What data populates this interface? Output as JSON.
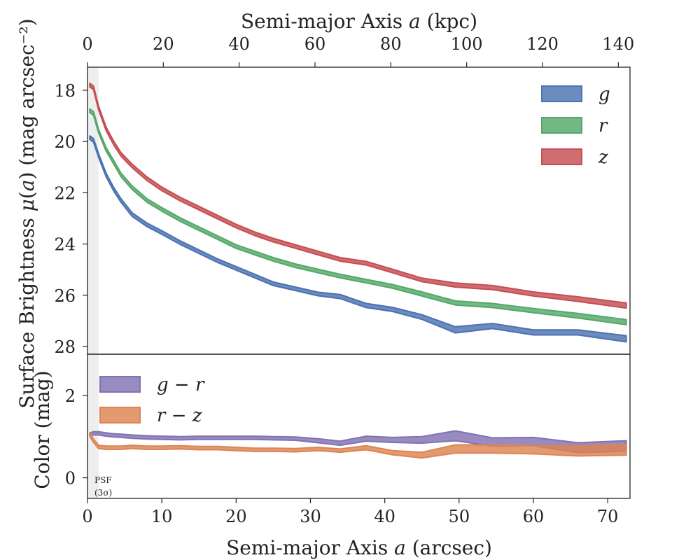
{
  "chart_data": [
    {
      "type": "area",
      "title": "",
      "xlabel": "Semi-major Axis a (arcsec)",
      "ylabel": "Surface Brightness μ(a) (mag arcsec⁻²)",
      "secondary_xlabel": "Semi-major Axis a (kpc)",
      "xlim": [
        0,
        73
      ],
      "ylim": [
        28.3,
        17.1
      ],
      "y_inverted": true,
      "kpc_per_arcsec": 1.96,
      "secondary_xticks": [
        0,
        20,
        40,
        60,
        80,
        100,
        120,
        140
      ],
      "yticks": [
        18,
        20,
        22,
        24,
        26,
        28
      ],
      "grid": false,
      "legend_position": "top-right",
      "shaded_region": {
        "x": [
          0,
          1.5
        ],
        "label": "PSF (3σ)"
      },
      "series": [
        {
          "name": "g",
          "color": "#4c72b0",
          "x": [
            0.3,
            0.8,
            1.5,
            2.5,
            3.5,
            4.5,
            6,
            8,
            10,
            12.5,
            15,
            17.5,
            20,
            22.5,
            25,
            28,
            31,
            34,
            37.5,
            41,
            45,
            49.5,
            54.5,
            60,
            66,
            72.5
          ],
          "y": [
            19.85,
            19.95,
            20.55,
            21.3,
            21.85,
            22.3,
            22.85,
            23.25,
            23.55,
            23.95,
            24.3,
            24.65,
            24.95,
            25.25,
            25.55,
            25.75,
            25.95,
            26.05,
            26.4,
            26.55,
            26.85,
            27.35,
            27.2,
            27.45,
            27.45,
            27.7
          ],
          "halfwidth": [
            0.07,
            0.07,
            0.07,
            0.07,
            0.07,
            0.07,
            0.07,
            0.07,
            0.07,
            0.07,
            0.07,
            0.07,
            0.07,
            0.07,
            0.07,
            0.07,
            0.07,
            0.08,
            0.08,
            0.08,
            0.09,
            0.12,
            0.1,
            0.1,
            0.1,
            0.12
          ]
        },
        {
          "name": "r",
          "color": "#55a868",
          "x": [
            0.3,
            0.8,
            1.5,
            2.5,
            3.5,
            4.5,
            6,
            8,
            10,
            12.5,
            15,
            17.5,
            20,
            22.5,
            25,
            28,
            31,
            34,
            37.5,
            41,
            45,
            49.5,
            54.5,
            60,
            66,
            72.5
          ],
          "y": [
            18.8,
            18.9,
            19.6,
            20.3,
            20.8,
            21.3,
            21.8,
            22.3,
            22.65,
            23.05,
            23.4,
            23.75,
            24.1,
            24.35,
            24.6,
            24.85,
            25.05,
            25.25,
            25.45,
            25.65,
            25.95,
            26.3,
            26.4,
            26.6,
            26.8,
            27.05
          ],
          "halfwidth": [
            0.07,
            0.07,
            0.07,
            0.07,
            0.07,
            0.07,
            0.07,
            0.07,
            0.07,
            0.07,
            0.07,
            0.07,
            0.07,
            0.07,
            0.07,
            0.07,
            0.07,
            0.07,
            0.07,
            0.07,
            0.08,
            0.08,
            0.08,
            0.08,
            0.09,
            0.1
          ]
        },
        {
          "name": "z",
          "color": "#c44e52",
          "x": [
            0.3,
            0.8,
            1.5,
            2.5,
            3.5,
            4.5,
            6,
            8,
            10,
            12.5,
            15,
            17.5,
            20,
            22.5,
            25,
            28,
            31,
            34,
            37.5,
            41,
            45,
            49.5,
            54.5,
            60,
            66,
            72.5
          ],
          "y": [
            17.8,
            17.9,
            18.7,
            19.5,
            20.05,
            20.5,
            20.95,
            21.45,
            21.85,
            22.25,
            22.6,
            22.95,
            23.3,
            23.6,
            23.85,
            24.1,
            24.35,
            24.6,
            24.75,
            25.05,
            25.4,
            25.6,
            25.7,
            25.95,
            26.15,
            26.4
          ],
          "halfwidth": [
            0.07,
            0.07,
            0.07,
            0.07,
            0.07,
            0.07,
            0.07,
            0.07,
            0.07,
            0.07,
            0.07,
            0.07,
            0.07,
            0.07,
            0.07,
            0.07,
            0.07,
            0.07,
            0.07,
            0.07,
            0.07,
            0.08,
            0.08,
            0.08,
            0.09,
            0.1
          ]
        }
      ]
    },
    {
      "type": "area",
      "title": "",
      "xlabel": "Semi-major Axis a (arcsec)",
      "ylabel": "Color (mag)",
      "xlim": [
        0,
        73
      ],
      "ylim": [
        -0.5,
        3.0
      ],
      "xticks": [
        0,
        10,
        20,
        30,
        40,
        50,
        60,
        70
      ],
      "yticks": [
        0,
        2
      ],
      "grid": false,
      "legend_position": "top-left",
      "series": [
        {
          "name": "g − r",
          "color": "#8172b2",
          "x": [
            0.3,
            0.8,
            1.5,
            2.5,
            3.5,
            4.5,
            6,
            8,
            10,
            12.5,
            15,
            17.5,
            20,
            22.5,
            25,
            28,
            31,
            34,
            37.5,
            41,
            45,
            49.5,
            54.5,
            60,
            66,
            72.5
          ],
          "y": [
            1.05,
            1.08,
            1.08,
            1.05,
            1.03,
            1.02,
            1.0,
            0.98,
            0.97,
            0.96,
            0.97,
            0.97,
            0.97,
            0.97,
            0.96,
            0.95,
            0.9,
            0.84,
            0.95,
            0.92,
            0.92,
            1.02,
            0.87,
            0.88,
            0.73,
            0.77
          ],
          "halfwidth": [
            0.04,
            0.04,
            0.04,
            0.04,
            0.04,
            0.04,
            0.04,
            0.04,
            0.04,
            0.04,
            0.04,
            0.04,
            0.04,
            0.04,
            0.04,
            0.04,
            0.05,
            0.05,
            0.06,
            0.06,
            0.08,
            0.12,
            0.1,
            0.1,
            0.12,
            0.13
          ]
        },
        {
          "name": "r − z",
          "color": "#dd8452",
          "x": [
            0.3,
            0.8,
            1.5,
            2.5,
            3.5,
            4.5,
            6,
            8,
            10,
            12.5,
            15,
            17.5,
            20,
            22.5,
            25,
            28,
            31,
            34,
            37.5,
            41,
            45,
            49.5,
            54.5,
            60,
            66,
            72.5
          ],
          "y": [
            1.05,
            0.9,
            0.75,
            0.73,
            0.73,
            0.73,
            0.75,
            0.73,
            0.73,
            0.74,
            0.72,
            0.72,
            0.7,
            0.68,
            0.68,
            0.67,
            0.7,
            0.66,
            0.73,
            0.61,
            0.55,
            0.7,
            0.7,
            0.68,
            0.65,
            0.68
          ],
          "halfwidth": [
            0.04,
            0.04,
            0.04,
            0.04,
            0.04,
            0.04,
            0.04,
            0.04,
            0.04,
            0.04,
            0.04,
            0.04,
            0.04,
            0.04,
            0.04,
            0.04,
            0.04,
            0.04,
            0.05,
            0.05,
            0.07,
            0.1,
            0.1,
            0.1,
            0.12,
            0.13
          ]
        }
      ],
      "annotation": "PSF (3σ)"
    }
  ]
}
